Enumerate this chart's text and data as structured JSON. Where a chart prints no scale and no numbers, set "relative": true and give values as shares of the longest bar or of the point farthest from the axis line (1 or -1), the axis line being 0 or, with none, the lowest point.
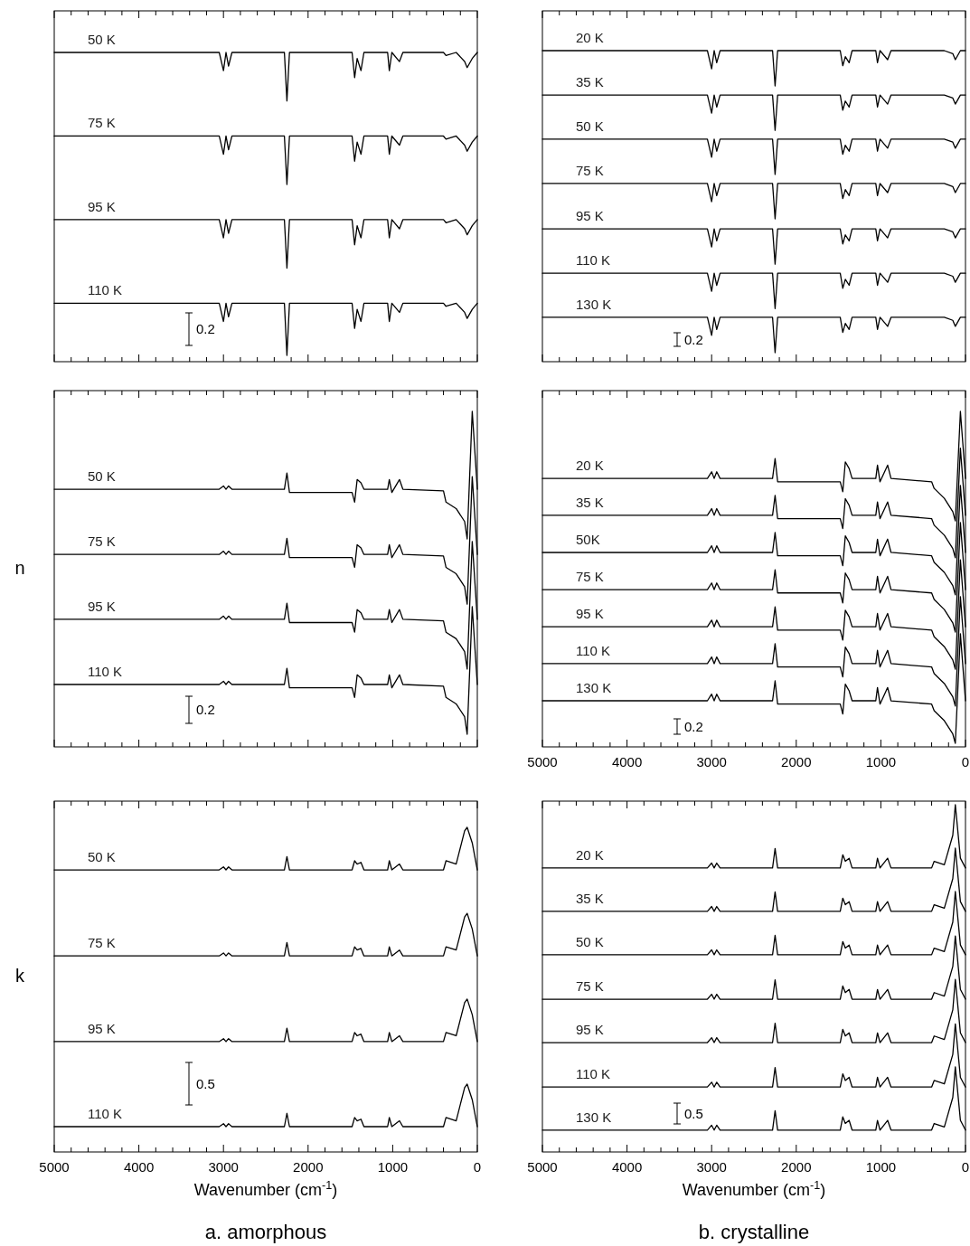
{
  "chart_data": [
    {
      "type": "line",
      "relative": true,
      "tick_labels": false,
      "annotations": [
        "0.2"
      ],
      "xlim": [
        5000,
        0
      ],
      "xticks": [
        5000,
        {
          "value": 4800,
          "label": null
        },
        {
          "value": 4600,
          "label": null
        },
        {
          "value": 4400,
          "label": null
        },
        {
          "value": 4200,
          "label": null
        },
        4000,
        {
          "value": 3800,
          "label": null
        },
        {
          "value": 3600,
          "label": null
        },
        {
          "value": 3400,
          "label": null
        },
        {
          "value": 3200,
          "label": null
        },
        3000,
        {
          "value": 2800,
          "label": null
        },
        {
          "value": 2600,
          "label": null
        },
        {
          "value": 2400,
          "label": null
        },
        {
          "value": 2200,
          "label": null
        },
        2000,
        {
          "value": 1800,
          "label": null
        },
        {
          "value": 1600,
          "label": null
        },
        {
          "value": 1400,
          "label": null
        },
        {
          "value": 1200,
          "label": null
        },
        1000,
        {
          "value": 800,
          "label": null
        },
        {
          "value": 600,
          "label": null
        },
        {
          "value": 400,
          "label": null
        },
        {
          "value": 200,
          "label": null
        },
        0
      ],
      "x": [
        5000,
        3050,
        3000,
        2970,
        2940,
        2900,
        2280,
        2250,
        2220,
        1480,
        1450,
        1420,
        1375,
        1340,
        1060,
        1040,
        1010,
        920,
        880,
        400,
        370,
        250,
        150,
        120,
        60,
        0
      ],
      "series": [
        {
          "name": "50 K",
          "color": "#000000",
          "values": [
            1,
            1,
            0.94,
            1,
            0.955,
            1,
            1,
            0.84,
            1,
            1,
            0.917,
            0.98,
            0.94,
            1,
            1,
            0.94,
            1,
            0.97,
            1,
            1,
            0.99,
            1,
            0.97,
            0.95,
            0.98,
            1
          ]
        },
        {
          "name": "75 K",
          "color": "#000000",
          "values": [
            0.724,
            0.724,
            0.664,
            0.724,
            0.679,
            0.724,
            0.724,
            0.564,
            0.724,
            0.724,
            0.641,
            0.704,
            0.664,
            0.724,
            0.724,
            0.664,
            0.724,
            0.694,
            0.724,
            0.724,
            0.714,
            0.724,
            0.694,
            0.674,
            0.704,
            0.724
          ]
        },
        {
          "name": "95 K",
          "color": "#000000",
          "values": [
            0.448,
            0.448,
            0.388,
            0.448,
            0.403,
            0.448,
            0.448,
            0.288,
            0.448,
            0.448,
            0.365,
            0.428,
            0.388,
            0.448,
            0.448,
            0.388,
            0.448,
            0.418,
            0.448,
            0.448,
            0.438,
            0.448,
            0.418,
            0.398,
            0.428,
            0.448
          ]
        },
        {
          "name": "110 K",
          "color": "#000000",
          "values": [
            0.172,
            0.172,
            0.112,
            0.172,
            0.127,
            0.172,
            0.172,
            0,
            0.172,
            0.172,
            0.089,
            0.152,
            0.112,
            0.172,
            0.172,
            0.112,
            0.172,
            0.142,
            0.172,
            0.172,
            0.162,
            0.172,
            0.142,
            0.122,
            0.152,
            0.172
          ]
        }
      ]
    },
    {
      "type": "line",
      "relative": true,
      "tick_labels": false,
      "annotations": [
        "0.2"
      ],
      "xlim": [
        5000,
        0
      ],
      "xticks": [
        5000,
        {
          "value": 4800,
          "label": null
        },
        {
          "value": 4600,
          "label": null
        },
        {
          "value": 4400,
          "label": null
        },
        {
          "value": 4200,
          "label": null
        },
        4000,
        {
          "value": 3800,
          "label": null
        },
        {
          "value": 3600,
          "label": null
        },
        {
          "value": 3400,
          "label": null
        },
        {
          "value": 3200,
          "label": null
        },
        3000,
        {
          "value": 2800,
          "label": null
        },
        {
          "value": 2600,
          "label": null
        },
        {
          "value": 2400,
          "label": null
        },
        {
          "value": 2200,
          "label": null
        },
        2000,
        {
          "value": 1800,
          "label": null
        },
        {
          "value": 1600,
          "label": null
        },
        {
          "value": 1400,
          "label": null
        },
        {
          "value": 1200,
          "label": null
        },
        1000,
        {
          "value": 800,
          "label": null
        },
        {
          "value": 600,
          "label": null
        },
        {
          "value": 400,
          "label": null
        },
        {
          "value": 200,
          "label": null
        },
        0
      ],
      "x": [
        5000,
        3050,
        3000,
        2970,
        2940,
        2900,
        2280,
        2250,
        2220,
        1480,
        1450,
        1420,
        1375,
        1340,
        1060,
        1040,
        1010,
        920,
        880,
        400,
        370,
        250,
        150,
        120,
        60,
        0
      ],
      "series": [
        {
          "name": "20 K",
          "color": "#000000",
          "values": [
            1,
            1,
            0.94,
            1,
            0.96,
            1,
            1,
            0.883,
            1,
            1,
            0.95,
            0.98,
            0.96,
            1,
            1,
            0.96,
            1,
            0.97,
            1,
            1,
            1,
            1,
            0.99,
            0.97,
            1,
            1
          ]
        },
        {
          "name": "35 K",
          "color": "#000000",
          "values": [
            0.853,
            0.853,
            0.793,
            0.853,
            0.813,
            0.853,
            0.853,
            0.736,
            0.853,
            0.853,
            0.803,
            0.833,
            0.813,
            0.853,
            0.853,
            0.813,
            0.853,
            0.823,
            0.853,
            0.853,
            0.853,
            0.853,
            0.843,
            0.823,
            0.853,
            0.853
          ]
        },
        {
          "name": "50 K",
          "color": "#000000",
          "values": [
            0.707,
            0.707,
            0.647,
            0.707,
            0.667,
            0.707,
            0.707,
            0.59,
            0.707,
            0.707,
            0.657,
            0.687,
            0.667,
            0.707,
            0.707,
            0.667,
            0.707,
            0.677,
            0.707,
            0.707,
            0.707,
            0.707,
            0.697,
            0.677,
            0.707,
            0.707
          ]
        },
        {
          "name": "75 K",
          "color": "#000000",
          "values": [
            0.56,
            0.56,
            0.5,
            0.56,
            0.52,
            0.56,
            0.56,
            0.443,
            0.56,
            0.56,
            0.51,
            0.54,
            0.52,
            0.56,
            0.56,
            0.52,
            0.56,
            0.53,
            0.56,
            0.56,
            0.56,
            0.56,
            0.55,
            0.53,
            0.56,
            0.56
          ]
        },
        {
          "name": "95 K",
          "color": "#000000",
          "values": [
            0.41,
            0.41,
            0.35,
            0.41,
            0.37,
            0.41,
            0.41,
            0.293,
            0.41,
            0.41,
            0.36,
            0.39,
            0.37,
            0.41,
            0.41,
            0.37,
            0.41,
            0.38,
            0.41,
            0.41,
            0.41,
            0.41,
            0.4,
            0.38,
            0.41,
            0.41
          ]
        },
        {
          "name": "110 K",
          "color": "#000000",
          "values": [
            0.263,
            0.263,
            0.203,
            0.263,
            0.223,
            0.263,
            0.263,
            0.146,
            0.263,
            0.263,
            0.213,
            0.243,
            0.223,
            0.263,
            0.263,
            0.223,
            0.263,
            0.233,
            0.263,
            0.263,
            0.263,
            0.263,
            0.253,
            0.233,
            0.263,
            0.263
          ]
        },
        {
          "name": "130 K",
          "color": "#000000",
          "values": [
            0.117,
            0.117,
            0.057,
            0.117,
            0.077,
            0.117,
            0.117,
            0,
            0.117,
            0.117,
            0.067,
            0.097,
            0.077,
            0.117,
            0.117,
            0.077,
            0.117,
            0.087,
            0.117,
            0.117,
            0.117,
            0.117,
            0.107,
            0.087,
            0.117,
            0.117
          ]
        }
      ]
    },
    {
      "type": "line",
      "relative": true,
      "tick_labels": false,
      "ylabel": "n",
      "annotations": [
        "0.2"
      ],
      "xlim": [
        5000,
        0
      ],
      "xticks": [
        5000,
        {
          "value": 4800,
          "label": null
        },
        {
          "value": 4600,
          "label": null
        },
        {
          "value": 4400,
          "label": null
        },
        {
          "value": 4200,
          "label": null
        },
        4000,
        {
          "value": 3800,
          "label": null
        },
        {
          "value": 3600,
          "label": null
        },
        {
          "value": 3400,
          "label": null
        },
        {
          "value": 3200,
          "label": null
        },
        3000,
        {
          "value": 2800,
          "label": null
        },
        {
          "value": 2600,
          "label": null
        },
        {
          "value": 2400,
          "label": null
        },
        {
          "value": 2200,
          "label": null
        },
        2000,
        {
          "value": 1800,
          "label": null
        },
        {
          "value": 1600,
          "label": null
        },
        {
          "value": 1400,
          "label": null
        },
        {
          "value": 1200,
          "label": null
        },
        1000,
        {
          "value": 800,
          "label": null
        },
        {
          "value": 600,
          "label": null
        },
        {
          "value": 400,
          "label": null
        },
        {
          "value": 200,
          "label": null
        },
        0
      ],
      "x": [
        5000,
        3050,
        3000,
        2970,
        2940,
        2900,
        2280,
        2250,
        2220,
        1480,
        1450,
        1420,
        1375,
        1340,
        1060,
        1040,
        1010,
        920,
        880,
        400,
        370,
        250,
        150,
        120,
        60,
        0
      ],
      "series": [
        {
          "name": "50 K",
          "color": "#000000",
          "values": [
            0.759,
            0.759,
            0.769,
            0.759,
            0.769,
            0.759,
            0.759,
            0.809,
            0.749,
            0.749,
            0.719,
            0.789,
            0.779,
            0.759,
            0.759,
            0.789,
            0.749,
            0.789,
            0.759,
            0.754,
            0.719,
            0.699,
            0.659,
            0.605,
            1,
            0.759
          ]
        },
        {
          "name": "75 K",
          "color": "#000000",
          "values": [
            0.557,
            0.557,
            0.567,
            0.557,
            0.567,
            0.557,
            0.557,
            0.607,
            0.547,
            0.547,
            0.517,
            0.587,
            0.577,
            0.557,
            0.557,
            0.587,
            0.547,
            0.587,
            0.557,
            0.552,
            0.517,
            0.497,
            0.457,
            0.403,
            0.798,
            0.557
          ]
        },
        {
          "name": "95 K",
          "color": "#000000",
          "values": [
            0.356,
            0.356,
            0.366,
            0.356,
            0.366,
            0.356,
            0.356,
            0.406,
            0.346,
            0.346,
            0.316,
            0.386,
            0.376,
            0.356,
            0.356,
            0.386,
            0.346,
            0.386,
            0.356,
            0.351,
            0.316,
            0.296,
            0.256,
            0.202,
            0.597,
            0.356
          ]
        },
        {
          "name": "110 K",
          "color": "#000000",
          "values": [
            0.154,
            0.154,
            0.164,
            0.154,
            0.164,
            0.154,
            0.154,
            0.204,
            0.144,
            0.144,
            0.114,
            0.184,
            0.174,
            0.154,
            0.154,
            0.184,
            0.144,
            0.184,
            0.154,
            0.149,
            0.114,
            0.094,
            0.054,
            0,
            0.395,
            0.154
          ]
        }
      ]
    },
    {
      "type": "line",
      "relative": true,
      "tick_labels": "x",
      "annotations": [
        "0.2"
      ],
      "xlim": [
        5000,
        0
      ],
      "xticks": [
        5000,
        {
          "value": 4800,
          "label": null
        },
        {
          "value": 4600,
          "label": null
        },
        {
          "value": 4400,
          "label": null
        },
        {
          "value": 4200,
          "label": null
        },
        4000,
        {
          "value": 3800,
          "label": null
        },
        {
          "value": 3600,
          "label": null
        },
        {
          "value": 3400,
          "label": null
        },
        {
          "value": 3200,
          "label": null
        },
        3000,
        {
          "value": 2800,
          "label": null
        },
        {
          "value": 2600,
          "label": null
        },
        {
          "value": 2400,
          "label": null
        },
        {
          "value": 2200,
          "label": null
        },
        2000,
        {
          "value": 1800,
          "label": null
        },
        {
          "value": 1600,
          "label": null
        },
        {
          "value": 1400,
          "label": null
        },
        {
          "value": 1200,
          "label": null
        },
        1000,
        {
          "value": 800,
          "label": null
        },
        {
          "value": 600,
          "label": null
        },
        {
          "value": 400,
          "label": null
        },
        {
          "value": 200,
          "label": null
        },
        0
      ],
      "x": [
        5000,
        3050,
        3000,
        2970,
        2940,
        2900,
        2280,
        2250,
        2220,
        1480,
        1450,
        1420,
        1375,
        1340,
        1060,
        1040,
        1010,
        920,
        880,
        400,
        370,
        250,
        150,
        120,
        60,
        0
      ],
      "series": [
        {
          "name": "20 K",
          "color": "#000000",
          "values": [
            0.798,
            0.798,
            0.818,
            0.798,
            0.818,
            0.798,
            0.798,
            0.858,
            0.788,
            0.788,
            0.758,
            0.848,
            0.828,
            0.798,
            0.798,
            0.838,
            0.788,
            0.838,
            0.798,
            0.788,
            0.768,
            0.738,
            0.698,
            0.67,
            1,
            0.798
          ]
        },
        {
          "name": "35 K",
          "color": "#000000",
          "values": [
            0.687,
            0.687,
            0.707,
            0.687,
            0.707,
            0.687,
            0.687,
            0.747,
            0.677,
            0.677,
            0.647,
            0.737,
            0.717,
            0.687,
            0.687,
            0.727,
            0.677,
            0.727,
            0.687,
            0.677,
            0.657,
            0.627,
            0.587,
            0.559,
            0.889,
            0.687
          ]
        },
        {
          "name": "50K",
          "color": "#000000",
          "values": [
            0.575,
            0.575,
            0.595,
            0.575,
            0.595,
            0.575,
            0.575,
            0.635,
            0.565,
            0.565,
            0.535,
            0.625,
            0.605,
            0.575,
            0.575,
            0.615,
            0.565,
            0.615,
            0.575,
            0.565,
            0.545,
            0.515,
            0.475,
            0.447,
            0.777,
            0.575
          ]
        },
        {
          "name": "75 K",
          "color": "#000000",
          "values": [
            0.463,
            0.463,
            0.483,
            0.463,
            0.483,
            0.463,
            0.463,
            0.523,
            0.453,
            0.453,
            0.423,
            0.513,
            0.493,
            0.463,
            0.463,
            0.503,
            0.453,
            0.503,
            0.463,
            0.453,
            0.433,
            0.403,
            0.363,
            0.335,
            0.665,
            0.463
          ]
        },
        {
          "name": "95 K",
          "color": "#000000",
          "values": [
            0.351,
            0.351,
            0.371,
            0.351,
            0.371,
            0.351,
            0.351,
            0.411,
            0.341,
            0.341,
            0.311,
            0.401,
            0.381,
            0.351,
            0.351,
            0.391,
            0.341,
            0.391,
            0.351,
            0.341,
            0.321,
            0.291,
            0.251,
            0.223,
            0.553,
            0.351
          ]
        },
        {
          "name": "110 K",
          "color": "#000000",
          "values": [
            0.24,
            0.24,
            0.26,
            0.24,
            0.26,
            0.24,
            0.24,
            0.3,
            0.23,
            0.23,
            0.2,
            0.29,
            0.27,
            0.24,
            0.24,
            0.28,
            0.23,
            0.28,
            0.24,
            0.23,
            0.21,
            0.18,
            0.14,
            0.112,
            0.442,
            0.24
          ]
        },
        {
          "name": "130 K",
          "color": "#000000",
          "values": [
            0.128,
            0.128,
            0.148,
            0.128,
            0.148,
            0.128,
            0.128,
            0.188,
            0.118,
            0.118,
            0.088,
            0.178,
            0.158,
            0.128,
            0.128,
            0.168,
            0.118,
            0.168,
            0.128,
            0.118,
            0.098,
            0.068,
            0.028,
            0,
            0.33,
            0.128
          ]
        }
      ]
    },
    {
      "type": "line",
      "relative": true,
      "tick_labels": "x",
      "ylabel": "k",
      "xlabel": "Wavenumber (cm$^{-1}$)",
      "annotations": [
        "0.5",
        "a.  amorphous"
      ],
      "xlim": [
        5000,
        0
      ],
      "xticks": [
        5000,
        {
          "value": 4800,
          "label": null
        },
        {
          "value": 4600,
          "label": null
        },
        {
          "value": 4400,
          "label": null
        },
        {
          "value": 4200,
          "label": null
        },
        4000,
        {
          "value": 3800,
          "label": null
        },
        {
          "value": 3600,
          "label": null
        },
        {
          "value": 3400,
          "label": null
        },
        {
          "value": 3200,
          "label": null
        },
        3000,
        {
          "value": 2800,
          "label": null
        },
        {
          "value": 2600,
          "label": null
        },
        {
          "value": 2400,
          "label": null
        },
        {
          "value": 2200,
          "label": null
        },
        2000,
        {
          "value": 1800,
          "label": null
        },
        {
          "value": 1600,
          "label": null
        },
        {
          "value": 1400,
          "label": null
        },
        {
          "value": 1200,
          "label": null
        },
        1000,
        {
          "value": 800,
          "label": null
        },
        {
          "value": 600,
          "label": null
        },
        {
          "value": 400,
          "label": null
        },
        {
          "value": 200,
          "label": null
        },
        0
      ],
      "x": [
        5000,
        3050,
        3000,
        2970,
        2940,
        2900,
        2280,
        2250,
        2220,
        1480,
        1450,
        1420,
        1375,
        1340,
        1060,
        1040,
        1010,
        920,
        880,
        400,
        370,
        250,
        150,
        120,
        60,
        0
      ],
      "series": [
        {
          "name": "50 K",
          "color": "#000000",
          "values": [
            0.869,
            0.869,
            0.878,
            0.869,
            0.878,
            0.869,
            0.869,
            0.91,
            0.869,
            0.869,
            0.897,
            0.887,
            0.892,
            0.869,
            0.869,
            0.897,
            0.869,
            0.887,
            0.869,
            0.869,
            0.897,
            0.887,
            0.989,
            1,
            0.952,
            0.869
          ]
        },
        {
          "name": "75 K",
          "color": "#000000",
          "values": [
            0.604,
            0.604,
            0.613,
            0.604,
            0.613,
            0.604,
            0.604,
            0.645,
            0.604,
            0.604,
            0.632,
            0.622,
            0.627,
            0.604,
            0.604,
            0.632,
            0.604,
            0.622,
            0.604,
            0.604,
            0.632,
            0.622,
            0.724,
            0.735,
            0.687,
            0.604
          ]
        },
        {
          "name": "95 K",
          "color": "#000000",
          "values": [
            0.34,
            0.34,
            0.349,
            0.34,
            0.349,
            0.34,
            0.34,
            0.381,
            0.34,
            0.34,
            0.368,
            0.358,
            0.363,
            0.34,
            0.34,
            0.368,
            0.34,
            0.358,
            0.34,
            0.34,
            0.368,
            0.358,
            0.46,
            0.471,
            0.423,
            0.34
          ]
        },
        {
          "name": "110 K",
          "color": "#000000",
          "values": [
            0.078,
            0.078,
            0.087,
            0.078,
            0.087,
            0.078,
            0.078,
            0.119,
            0.078,
            0.078,
            0.106,
            0.096,
            0.101,
            0.078,
            0.078,
            0.106,
            0.078,
            0.096,
            0.078,
            0.078,
            0.106,
            0.096,
            0.198,
            0.209,
            0.161,
            0.078
          ]
        }
      ]
    },
    {
      "type": "line",
      "relative": true,
      "tick_labels": "x",
      "xlabel": "Wavenumber (cm$^{-1}$)",
      "annotations": [
        "0.5",
        "b. crystalline"
      ],
      "xlim": [
        5000,
        0
      ],
      "xticks": [
        5000,
        {
          "value": 4800,
          "label": null
        },
        {
          "value": 4600,
          "label": null
        },
        {
          "value": 4400,
          "label": null
        },
        {
          "value": 4200,
          "label": null
        },
        4000,
        {
          "value": 3800,
          "label": null
        },
        {
          "value": 3600,
          "label": null
        },
        {
          "value": 3400,
          "label": null
        },
        {
          "value": 3200,
          "label": null
        },
        3000,
        {
          "value": 2800,
          "label": null
        },
        {
          "value": 2600,
          "label": null
        },
        {
          "value": 2400,
          "label": null
        },
        {
          "value": 2200,
          "label": null
        },
        2000,
        {
          "value": 1800,
          "label": null
        },
        {
          "value": 1600,
          "label": null
        },
        {
          "value": 1400,
          "label": null
        },
        {
          "value": 1200,
          "label": null
        },
        1000,
        {
          "value": 800,
          "label": null
        },
        {
          "value": 600,
          "label": null
        },
        {
          "value": 400,
          "label": null
        },
        {
          "value": 200,
          "label": null
        },
        0
      ],
      "x": [
        5000,
        3050,
        3000,
        2970,
        2940,
        2900,
        2280,
        2250,
        2220,
        1480,
        1450,
        1420,
        1375,
        1340,
        1060,
        1040,
        1010,
        920,
        880,
        400,
        370,
        250,
        150,
        120,
        60,
        0
      ],
      "series": [
        {
          "name": "20 K",
          "color": "#000000",
          "values": [
            0.818,
            0.818,
            0.832,
            0.818,
            0.832,
            0.818,
            0.818,
            0.874,
            0.818,
            0.818,
            0.856,
            0.837,
            0.846,
            0.818,
            0.818,
            0.846,
            0.818,
            0.846,
            0.818,
            0.818,
            0.837,
            0.827,
            0.912,
            1,
            0.846,
            0.818
          ]
        },
        {
          "name": "35 K",
          "color": "#000000",
          "values": [
            0.693,
            0.693,
            0.707,
            0.693,
            0.707,
            0.693,
            0.693,
            0.749,
            0.693,
            0.693,
            0.731,
            0.712,
            0.721,
            0.693,
            0.693,
            0.721,
            0.693,
            0.721,
            0.693,
            0.693,
            0.712,
            0.702,
            0.787,
            0.875,
            0.721,
            0.693
          ]
        },
        {
          "name": "50 K",
          "color": "#000000",
          "values": [
            0.568,
            0.568,
            0.582,
            0.568,
            0.582,
            0.568,
            0.568,
            0.624,
            0.568,
            0.568,
            0.606,
            0.587,
            0.596,
            0.568,
            0.568,
            0.596,
            0.568,
            0.596,
            0.568,
            0.568,
            0.587,
            0.577,
            0.662,
            0.75,
            0.596,
            0.568
          ]
        },
        {
          "name": "75 K",
          "color": "#000000",
          "values": [
            0.44,
            0.44,
            0.454,
            0.44,
            0.454,
            0.44,
            0.44,
            0.496,
            0.44,
            0.44,
            0.478,
            0.459,
            0.468,
            0.44,
            0.44,
            0.468,
            0.44,
            0.468,
            0.44,
            0.44,
            0.459,
            0.449,
            0.534,
            0.622,
            0.468,
            0.44
          ]
        },
        {
          "name": "95 K",
          "color": "#000000",
          "values": [
            0.315,
            0.315,
            0.329,
            0.315,
            0.329,
            0.315,
            0.315,
            0.371,
            0.315,
            0.315,
            0.353,
            0.334,
            0.343,
            0.315,
            0.315,
            0.343,
            0.315,
            0.343,
            0.315,
            0.315,
            0.334,
            0.324,
            0.409,
            0.497,
            0.343,
            0.315
          ]
        },
        {
          "name": "110 K",
          "color": "#000000",
          "values": [
            0.187,
            0.187,
            0.201,
            0.187,
            0.201,
            0.187,
            0.187,
            0.243,
            0.187,
            0.187,
            0.225,
            0.206,
            0.215,
            0.187,
            0.187,
            0.215,
            0.187,
            0.215,
            0.187,
            0.187,
            0.206,
            0.196,
            0.281,
            0.369,
            0.215,
            0.187
          ]
        },
        {
          "name": "130 K",
          "color": "#000000",
          "values": [
            0.063,
            0.063,
            0.077,
            0.063,
            0.077,
            0.063,
            0.063,
            0.119,
            0.063,
            0.063,
            0.101,
            0.082,
            0.091,
            0.063,
            0.063,
            0.091,
            0.063,
            0.091,
            0.063,
            0.063,
            0.082,
            0.072,
            0.157,
            0.245,
            0.091,
            0.063
          ]
        }
      ]
    }
  ]
}
